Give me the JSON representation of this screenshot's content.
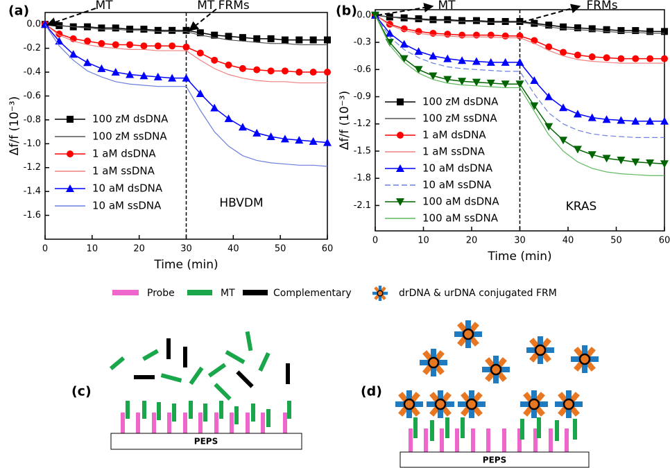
{
  "chart_data": [
    {
      "type": "line",
      "panel_label": "(a)",
      "x_label": "Time (min)",
      "y_label": "Δf/f (10⁻³)",
      "annotations": [
        "MT",
        "MT FRMs",
        "HBVDM"
      ],
      "vline": 30,
      "legend": true,
      "xlim": [
        0,
        60
      ],
      "xticks": [
        0,
        10,
        20,
        30,
        40,
        50,
        60
      ],
      "ylim": [
        -1.8,
        0.1
      ],
      "yticks": [
        {
          "value": 0,
          "label": "0.0"
        },
        -0.2,
        -0.4,
        -0.6,
        -0.8,
        {
          "value": -1,
          "label": "-1.0"
        },
        -1.2,
        -1.4,
        -1.6
      ],
      "x": [
        0,
        3,
        6,
        9,
        12,
        15,
        18,
        21,
        24,
        27,
        30,
        33,
        36,
        39,
        42,
        45,
        48,
        51,
        54,
        57,
        60
      ],
      "series": [
        {
          "name": "100 zM dsDNA",
          "color": "#000000",
          "marker": "square",
          "values": [
            0,
            -0.01,
            -0.02,
            -0.02,
            -0.03,
            -0.03,
            -0.04,
            -0.04,
            -0.05,
            -0.05,
            -0.05,
            -0.07,
            -0.09,
            -0.1,
            -0.11,
            -0.12,
            -0.12,
            -0.13,
            -0.13,
            -0.13,
            -0.13
          ]
        },
        {
          "name": "100 zM ssDNA",
          "color": "#555555",
          "marker": "none",
          "values": [
            0,
            -0.01,
            -0.02,
            -0.03,
            -0.04,
            -0.04,
            -0.05,
            -0.05,
            -0.06,
            -0.06,
            -0.06,
            -0.09,
            -0.11,
            -0.13,
            -0.14,
            -0.15,
            -0.16,
            -0.16,
            -0.17,
            -0.17,
            -0.17
          ]
        },
        {
          "name": "1 aM dsDNA",
          "color": "#ff0000",
          "marker": "circle",
          "values": [
            0,
            -0.08,
            -0.12,
            -0.14,
            -0.16,
            -0.17,
            -0.17,
            -0.18,
            -0.18,
            -0.18,
            -0.19,
            -0.24,
            -0.3,
            -0.34,
            -0.37,
            -0.38,
            -0.39,
            -0.39,
            -0.4,
            -0.4,
            -0.4
          ]
        },
        {
          "name": "1 aM ssDNA",
          "color": "#f08080",
          "marker": "none",
          "values": [
            0,
            -0.09,
            -0.14,
            -0.17,
            -0.19,
            -0.2,
            -0.21,
            -0.21,
            -0.22,
            -0.22,
            -0.22,
            -0.3,
            -0.37,
            -0.42,
            -0.45,
            -0.47,
            -0.48,
            -0.48,
            -0.49,
            -0.49,
            -0.49
          ]
        },
        {
          "name": "10 aM dsDNA",
          "color": "#0000ff",
          "marker": "triangle",
          "values": [
            0,
            -0.14,
            -0.25,
            -0.32,
            -0.37,
            -0.4,
            -0.42,
            -0.43,
            -0.44,
            -0.45,
            -0.45,
            -0.58,
            -0.7,
            -0.79,
            -0.86,
            -0.91,
            -0.94,
            -0.96,
            -0.97,
            -0.98,
            -0.99
          ]
        },
        {
          "name": "10 aM ssDNA",
          "color": "#6b7fe0",
          "marker": "none",
          "values": [
            0,
            -0.18,
            -0.3,
            -0.39,
            -0.44,
            -0.48,
            -0.5,
            -0.51,
            -0.52,
            -0.52,
            -0.52,
            -0.72,
            -0.9,
            -1.02,
            -1.1,
            -1.14,
            -1.16,
            -1.17,
            -1.18,
            -1.18,
            -1.19
          ]
        }
      ]
    },
    {
      "type": "line",
      "panel_label": "(b)",
      "x_label": "Time (min)",
      "y_label": "Δf/f (10⁻³)",
      "annotations": [
        "MT",
        "FRMs",
        "KRAS"
      ],
      "vline": 30,
      "legend": true,
      "xlim": [
        0,
        60
      ],
      "xticks": [
        0,
        10,
        20,
        30,
        40,
        50,
        60
      ],
      "ylim": [
        -2.38,
        0.06
      ],
      "yticks": [
        {
          "value": 0,
          "label": "0.0"
        },
        -0.3,
        -0.6,
        -0.9,
        -1.2,
        -1.5,
        -1.8,
        -2.1
      ],
      "x": [
        0,
        3,
        6,
        9,
        12,
        15,
        18,
        21,
        24,
        27,
        30,
        33,
        36,
        39,
        42,
        45,
        48,
        51,
        54,
        57,
        60
      ],
      "series": [
        {
          "name": "100 zM dsDNA",
          "color": "#000000",
          "marker": "square",
          "values": [
            0,
            -0.02,
            -0.03,
            -0.04,
            -0.05,
            -0.05,
            -0.06,
            -0.06,
            -0.07,
            -0.07,
            -0.07,
            -0.09,
            -0.11,
            -0.13,
            -0.14,
            -0.15,
            -0.16,
            -0.17,
            -0.17,
            -0.18,
            -0.18
          ]
        },
        {
          "name": "100 zM ssDNA",
          "color": "#555555",
          "marker": "none",
          "values": [
            0,
            -0.02,
            -0.04,
            -0.05,
            -0.06,
            -0.06,
            -0.07,
            -0.07,
            -0.08,
            -0.08,
            -0.08,
            -0.1,
            -0.13,
            -0.15,
            -0.16,
            -0.17,
            -0.18,
            -0.19,
            -0.19,
            -0.2,
            -0.2
          ]
        },
        {
          "name": "1 aM dsDNA",
          "color": "#ff0000",
          "marker": "circle",
          "values": [
            0,
            -0.1,
            -0.15,
            -0.18,
            -0.2,
            -0.21,
            -0.22,
            -0.22,
            -0.22,
            -0.23,
            -0.23,
            -0.28,
            -0.35,
            -0.41,
            -0.44,
            -0.46,
            -0.47,
            -0.48,
            -0.48,
            -0.48,
            -0.48
          ]
        },
        {
          "name": "1 aM ssDNA",
          "color": "#f08080",
          "marker": "none",
          "values": [
            0,
            -0.11,
            -0.17,
            -0.2,
            -0.22,
            -0.23,
            -0.24,
            -0.24,
            -0.24,
            -0.25,
            -0.25,
            -0.31,
            -0.39,
            -0.45,
            -0.49,
            -0.51,
            -0.52,
            -0.53,
            -0.53,
            -0.53,
            -0.53
          ]
        },
        {
          "name": "10 aM dsDNA",
          "color": "#0000ff",
          "marker": "triangle",
          "values": [
            0,
            -0.2,
            -0.32,
            -0.4,
            -0.45,
            -0.48,
            -0.5,
            -0.51,
            -0.52,
            -0.52,
            -0.52,
            -0.72,
            -0.9,
            -1.02,
            -1.09,
            -1.13,
            -1.15,
            -1.16,
            -1.17,
            -1.17,
            -1.17
          ]
        },
        {
          "name": "10 aM ssDNA",
          "color": "#6b7fe0",
          "marker": "none",
          "dash": true,
          "values": [
            0,
            -0.24,
            -0.38,
            -0.47,
            -0.53,
            -0.57,
            -0.59,
            -0.6,
            -0.61,
            -0.62,
            -0.62,
            -0.87,
            -1.08,
            -1.2,
            -1.27,
            -1.31,
            -1.33,
            -1.34,
            -1.35,
            -1.35,
            -1.35
          ]
        },
        {
          "name": "100 aM dsDNA",
          "color": "#006400",
          "marker": "triangle-down",
          "values": [
            0,
            -0.3,
            -0.48,
            -0.6,
            -0.67,
            -0.71,
            -0.73,
            -0.74,
            -0.75,
            -0.76,
            -0.76,
            -1.0,
            -1.23,
            -1.38,
            -1.48,
            -1.54,
            -1.58,
            -1.6,
            -1.62,
            -1.63,
            -1.64
          ]
        },
        {
          "name": "100 aM ssDNA",
          "color": "#5cb85c",
          "marker": "none",
          "values": [
            0,
            -0.33,
            -0.52,
            -0.64,
            -0.71,
            -0.75,
            -0.77,
            -0.78,
            -0.79,
            -0.8,
            -0.8,
            -1.06,
            -1.32,
            -1.5,
            -1.62,
            -1.69,
            -1.73,
            -1.75,
            -1.76,
            -1.77,
            -1.77
          ]
        }
      ]
    }
  ],
  "diagram": {
    "legend": [
      "Probe",
      "MT",
      "Complementary",
      "drDNA & urDNA conjugated FRM"
    ],
    "panels": [
      "(c)",
      "(d)"
    ],
    "substrate": "PEPS"
  }
}
